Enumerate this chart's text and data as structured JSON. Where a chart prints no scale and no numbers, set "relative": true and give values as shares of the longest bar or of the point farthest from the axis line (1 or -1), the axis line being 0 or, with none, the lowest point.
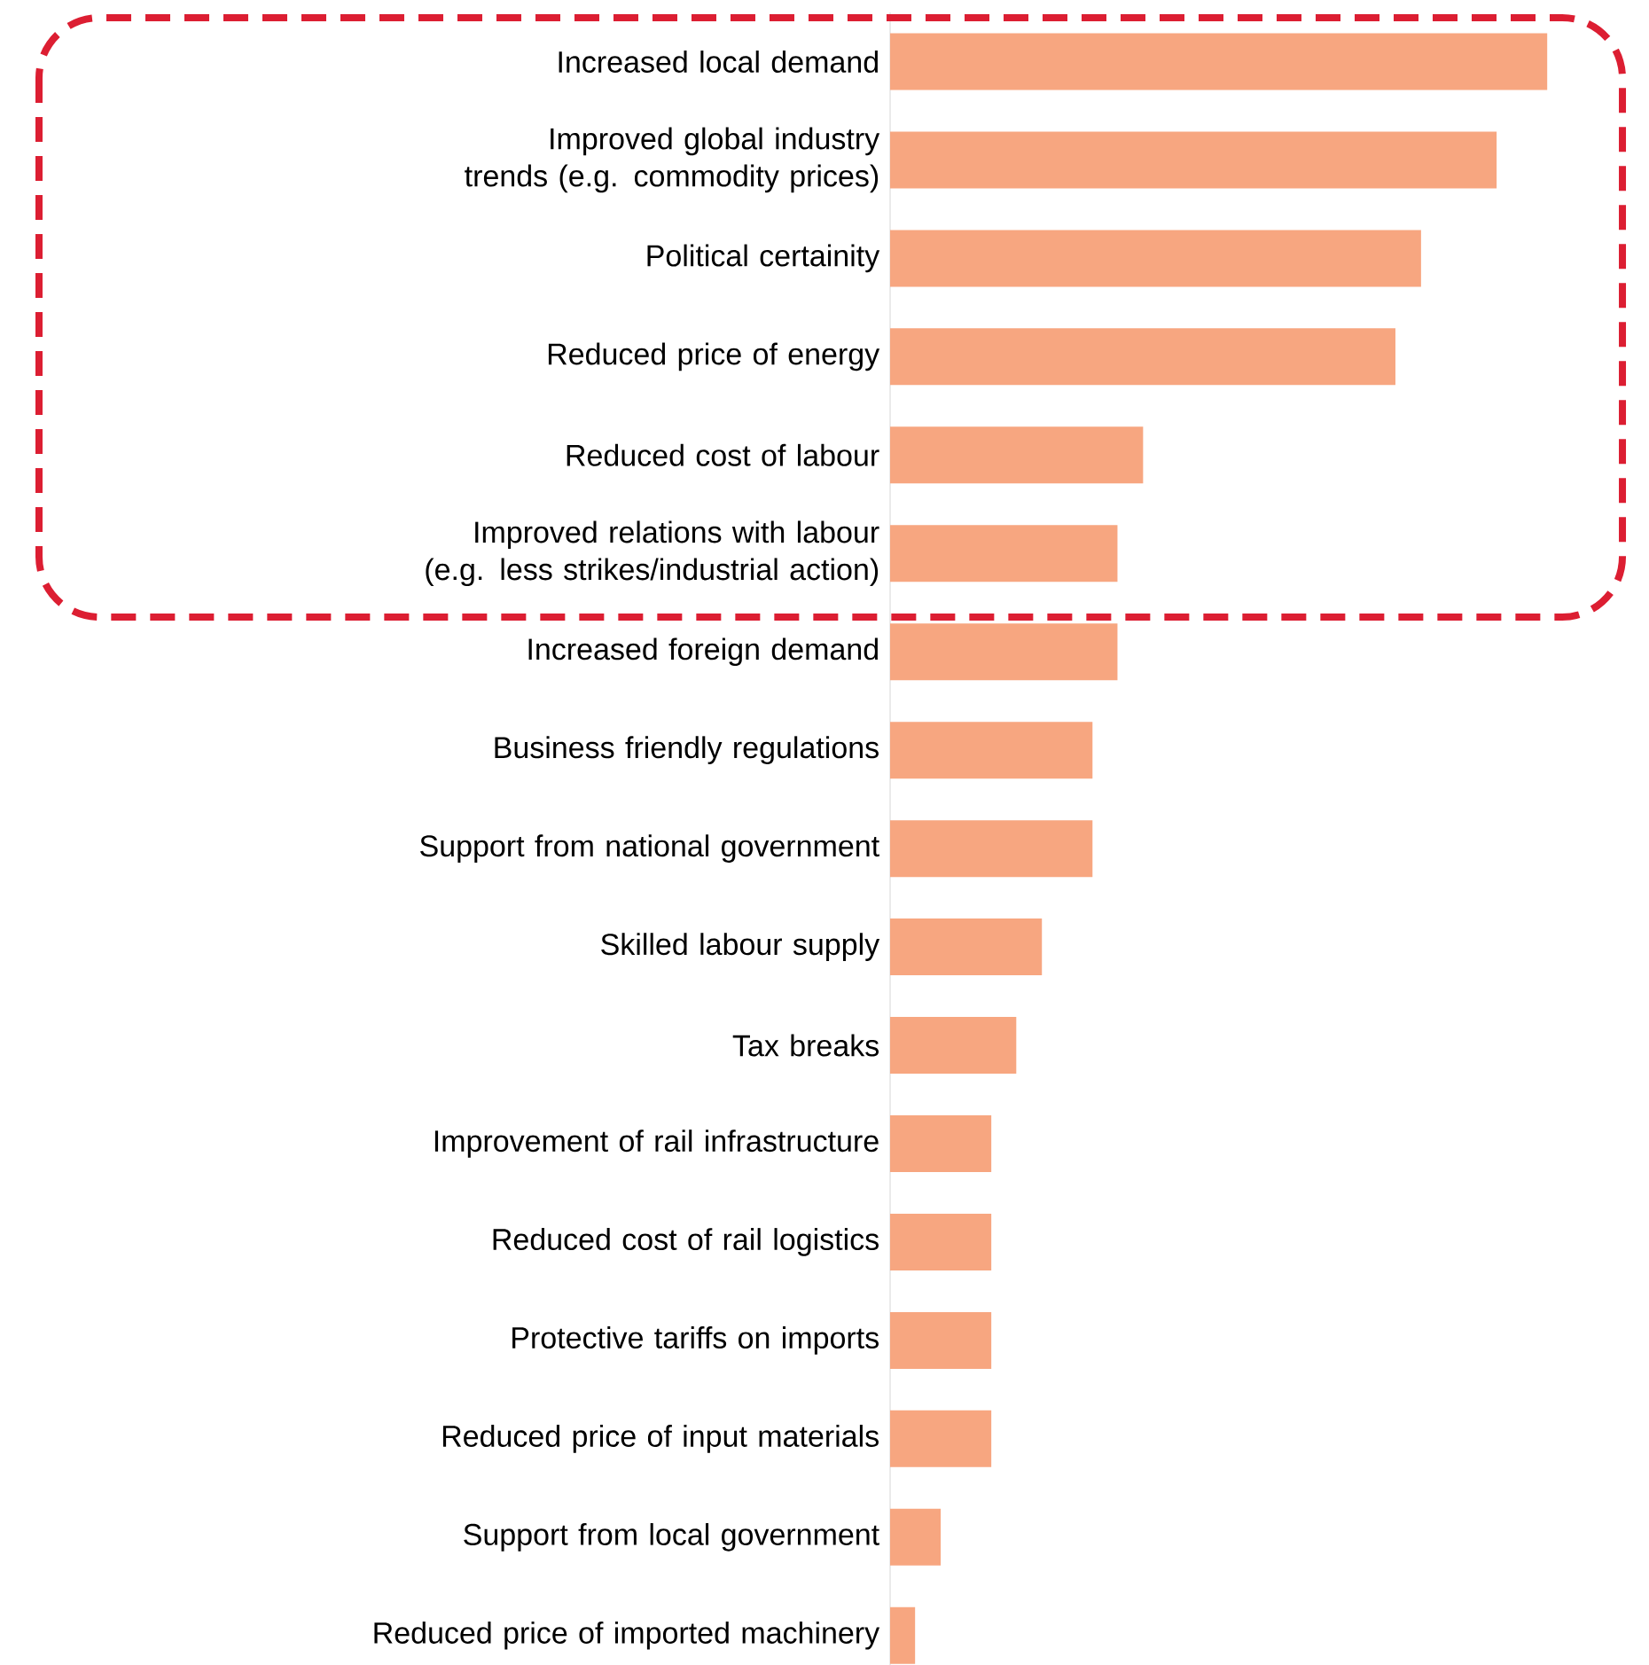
{
  "chart_data": {
    "type": "bar",
    "orientation": "horizontal",
    "relative": true,
    "color": "#f7a680",
    "categories": [
      "Increased local demand",
      "Improved global industry trends (e.g. commodity prices)",
      "Political certainity",
      "Reduced price of energy",
      "Reduced cost of labour",
      "Improved relations with labour (e.g. less strikes/industrial action)",
      "Increased foreign demand",
      "Business friendly regulations",
      "Support from national government",
      "Skilled labour supply",
      "Tax breaks",
      "Improvement of rail infrastructure",
      "Reduced cost of  rail logistics",
      "Protective tariffs on imports",
      "Reduced price of input materials",
      "Support from local government",
      "Reduced price of imported machinery"
    ],
    "values": [
      1,
      0.923,
      0.808,
      0.769,
      0.385,
      0.346,
      0.346,
      0.308,
      0.308,
      0.231,
      0.192,
      0.154,
      0.154,
      0.154,
      0.154,
      0.077,
      0.038
    ]
  }
}
